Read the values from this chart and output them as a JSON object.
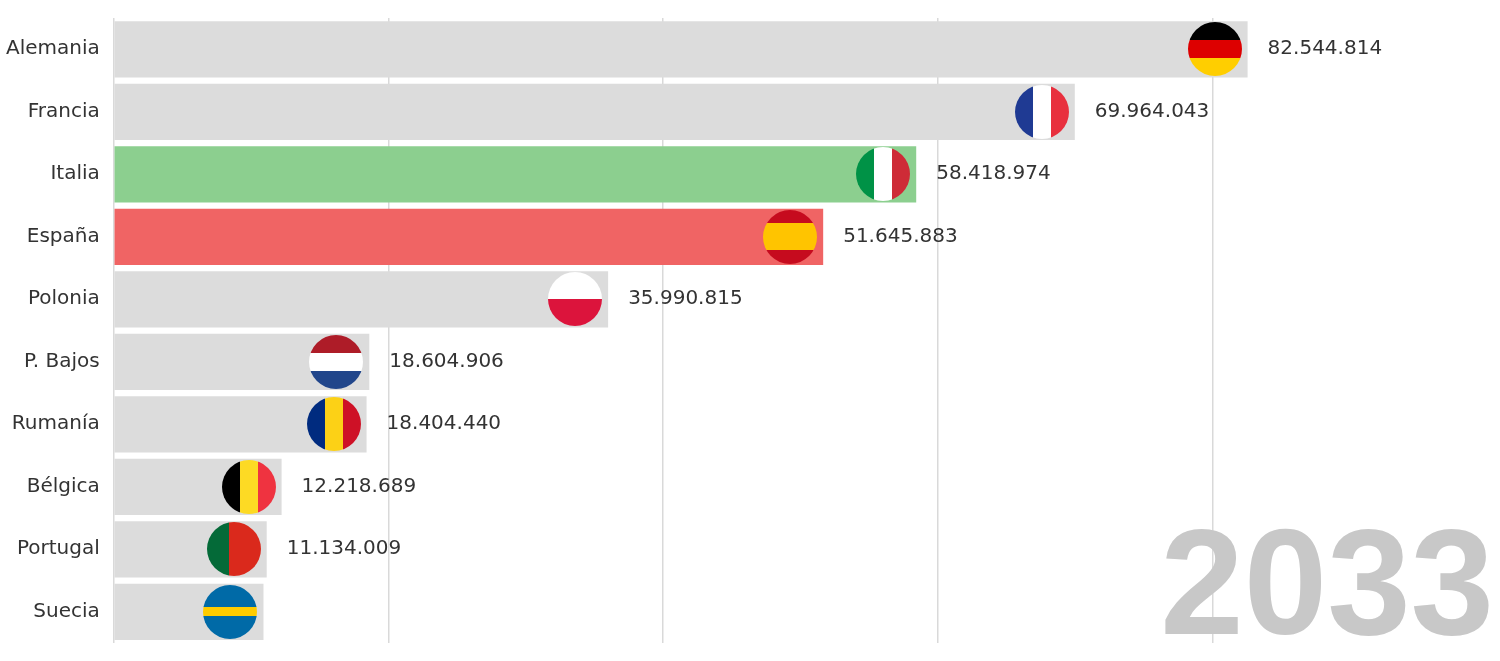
{
  "chart_data": {
    "type": "bar",
    "orientation": "horizontal",
    "categories": [
      "Alemania",
      "Francia",
      "Italia",
      "España",
      "Polonia",
      "P. Bajos",
      "Rumanía",
      "Bélgica",
      "Portugal",
      "Suecia"
    ],
    "values": [
      82544814,
      69964043,
      58418974,
      51645883,
      35990815,
      18604906,
      18404440,
      12218689,
      11134009,
      10900000
    ],
    "colors": [
      "#dcdcdc",
      "#dcdcdc",
      "#8ccf8f",
      "#f06464",
      "#dcdcdc",
      "#dcdcdc",
      "#dcdcdc",
      "#dcdcdc",
      "#dcdcdc",
      "#dcdcdc"
    ],
    "value_labels": [
      "82.544.814",
      "69.964.043",
      "58.418.974",
      "51.645.883",
      "35.990.815",
      "18.604.906",
      "18.404.440",
      "12.218.689",
      "11.134.009",
      null
    ],
    "xticks": [
      {
        "value": 0,
        "label": null
      },
      {
        "value": 20000000,
        "label": null
      },
      {
        "value": 40000000,
        "label": null
      },
      {
        "value": 60000000,
        "label": null
      },
      {
        "value": 80000000,
        "label": null
      }
    ],
    "tick_labels": "y",
    "grid": "x",
    "legend": false,
    "annotations": [
      "2033"
    ]
  }
}
